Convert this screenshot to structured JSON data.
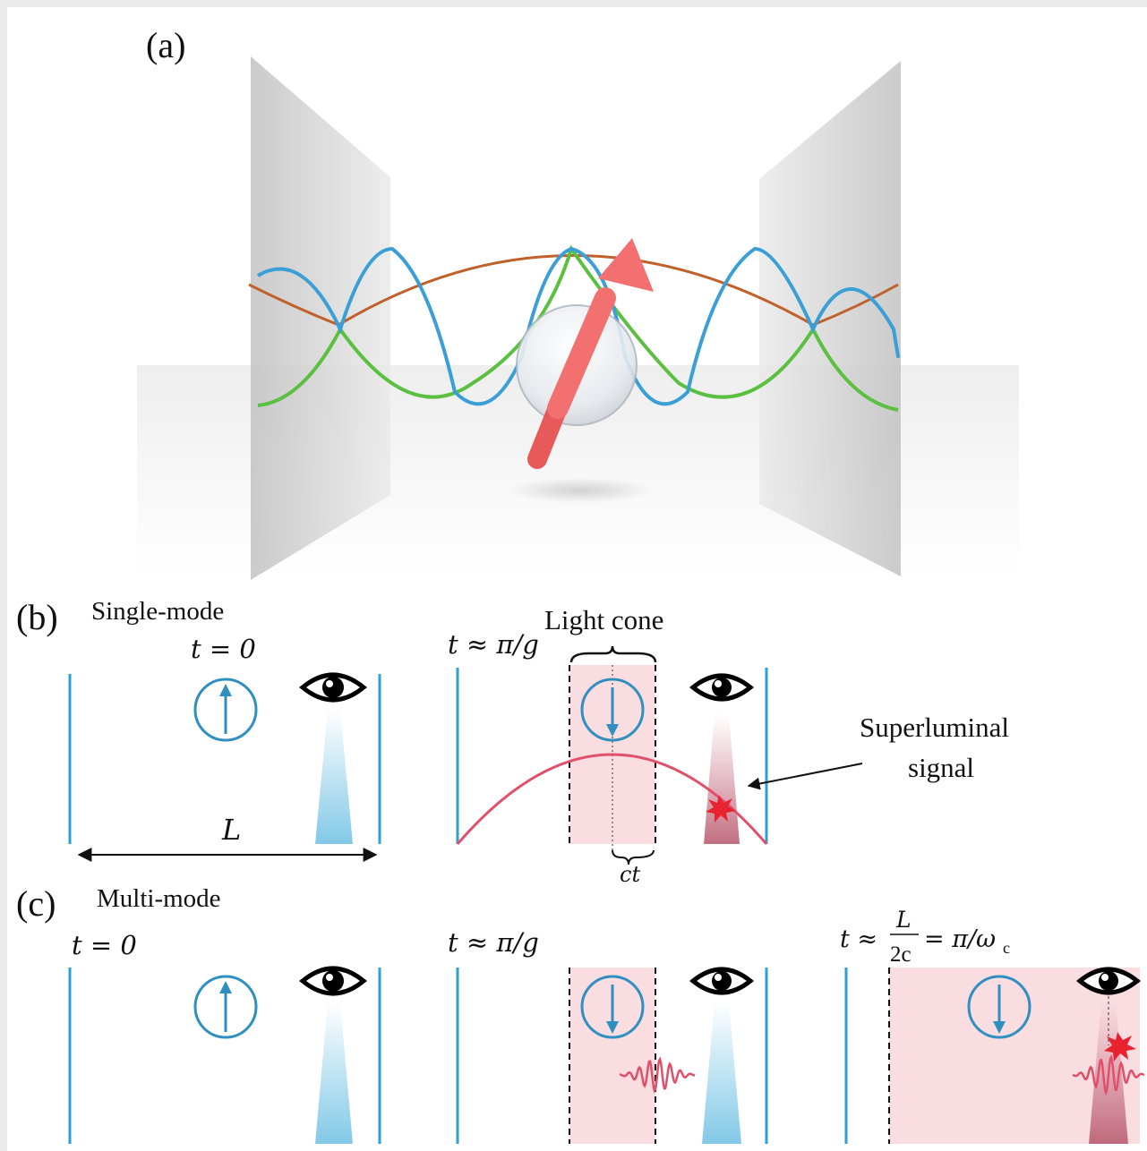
{
  "panel_a": {
    "label": "(a)"
  },
  "panel_b": {
    "label": "(b)",
    "title": "Single-mode",
    "time_left": "t = 0",
    "time_right": "t ≈ π/g",
    "light_cone": "Light cone",
    "superluminal_line1": "Superluminal",
    "superluminal_line2": "signal",
    "length_label": "L",
    "ct_label": "ct"
  },
  "panel_c": {
    "label": "(c)",
    "title": "Multi-mode",
    "time_1": "t = 0",
    "time_2": "t ≈ π/g",
    "time_3_prefix": "t ≈",
    "time_3_num": "L",
    "time_3_den": "2c",
    "time_3_suffix": "= π/ω",
    "time_3_sub": "c"
  },
  "colors": {
    "mirror": "#2f9fd0",
    "atom": "#2f8fbf",
    "cone_fill": "#f9dde1",
    "signal": "#e0506a",
    "arrow_3d": "#f26d6d",
    "wave_blue": "#3a9fd6",
    "wave_green": "#5bc040",
    "wave_orange": "#c0602a"
  }
}
